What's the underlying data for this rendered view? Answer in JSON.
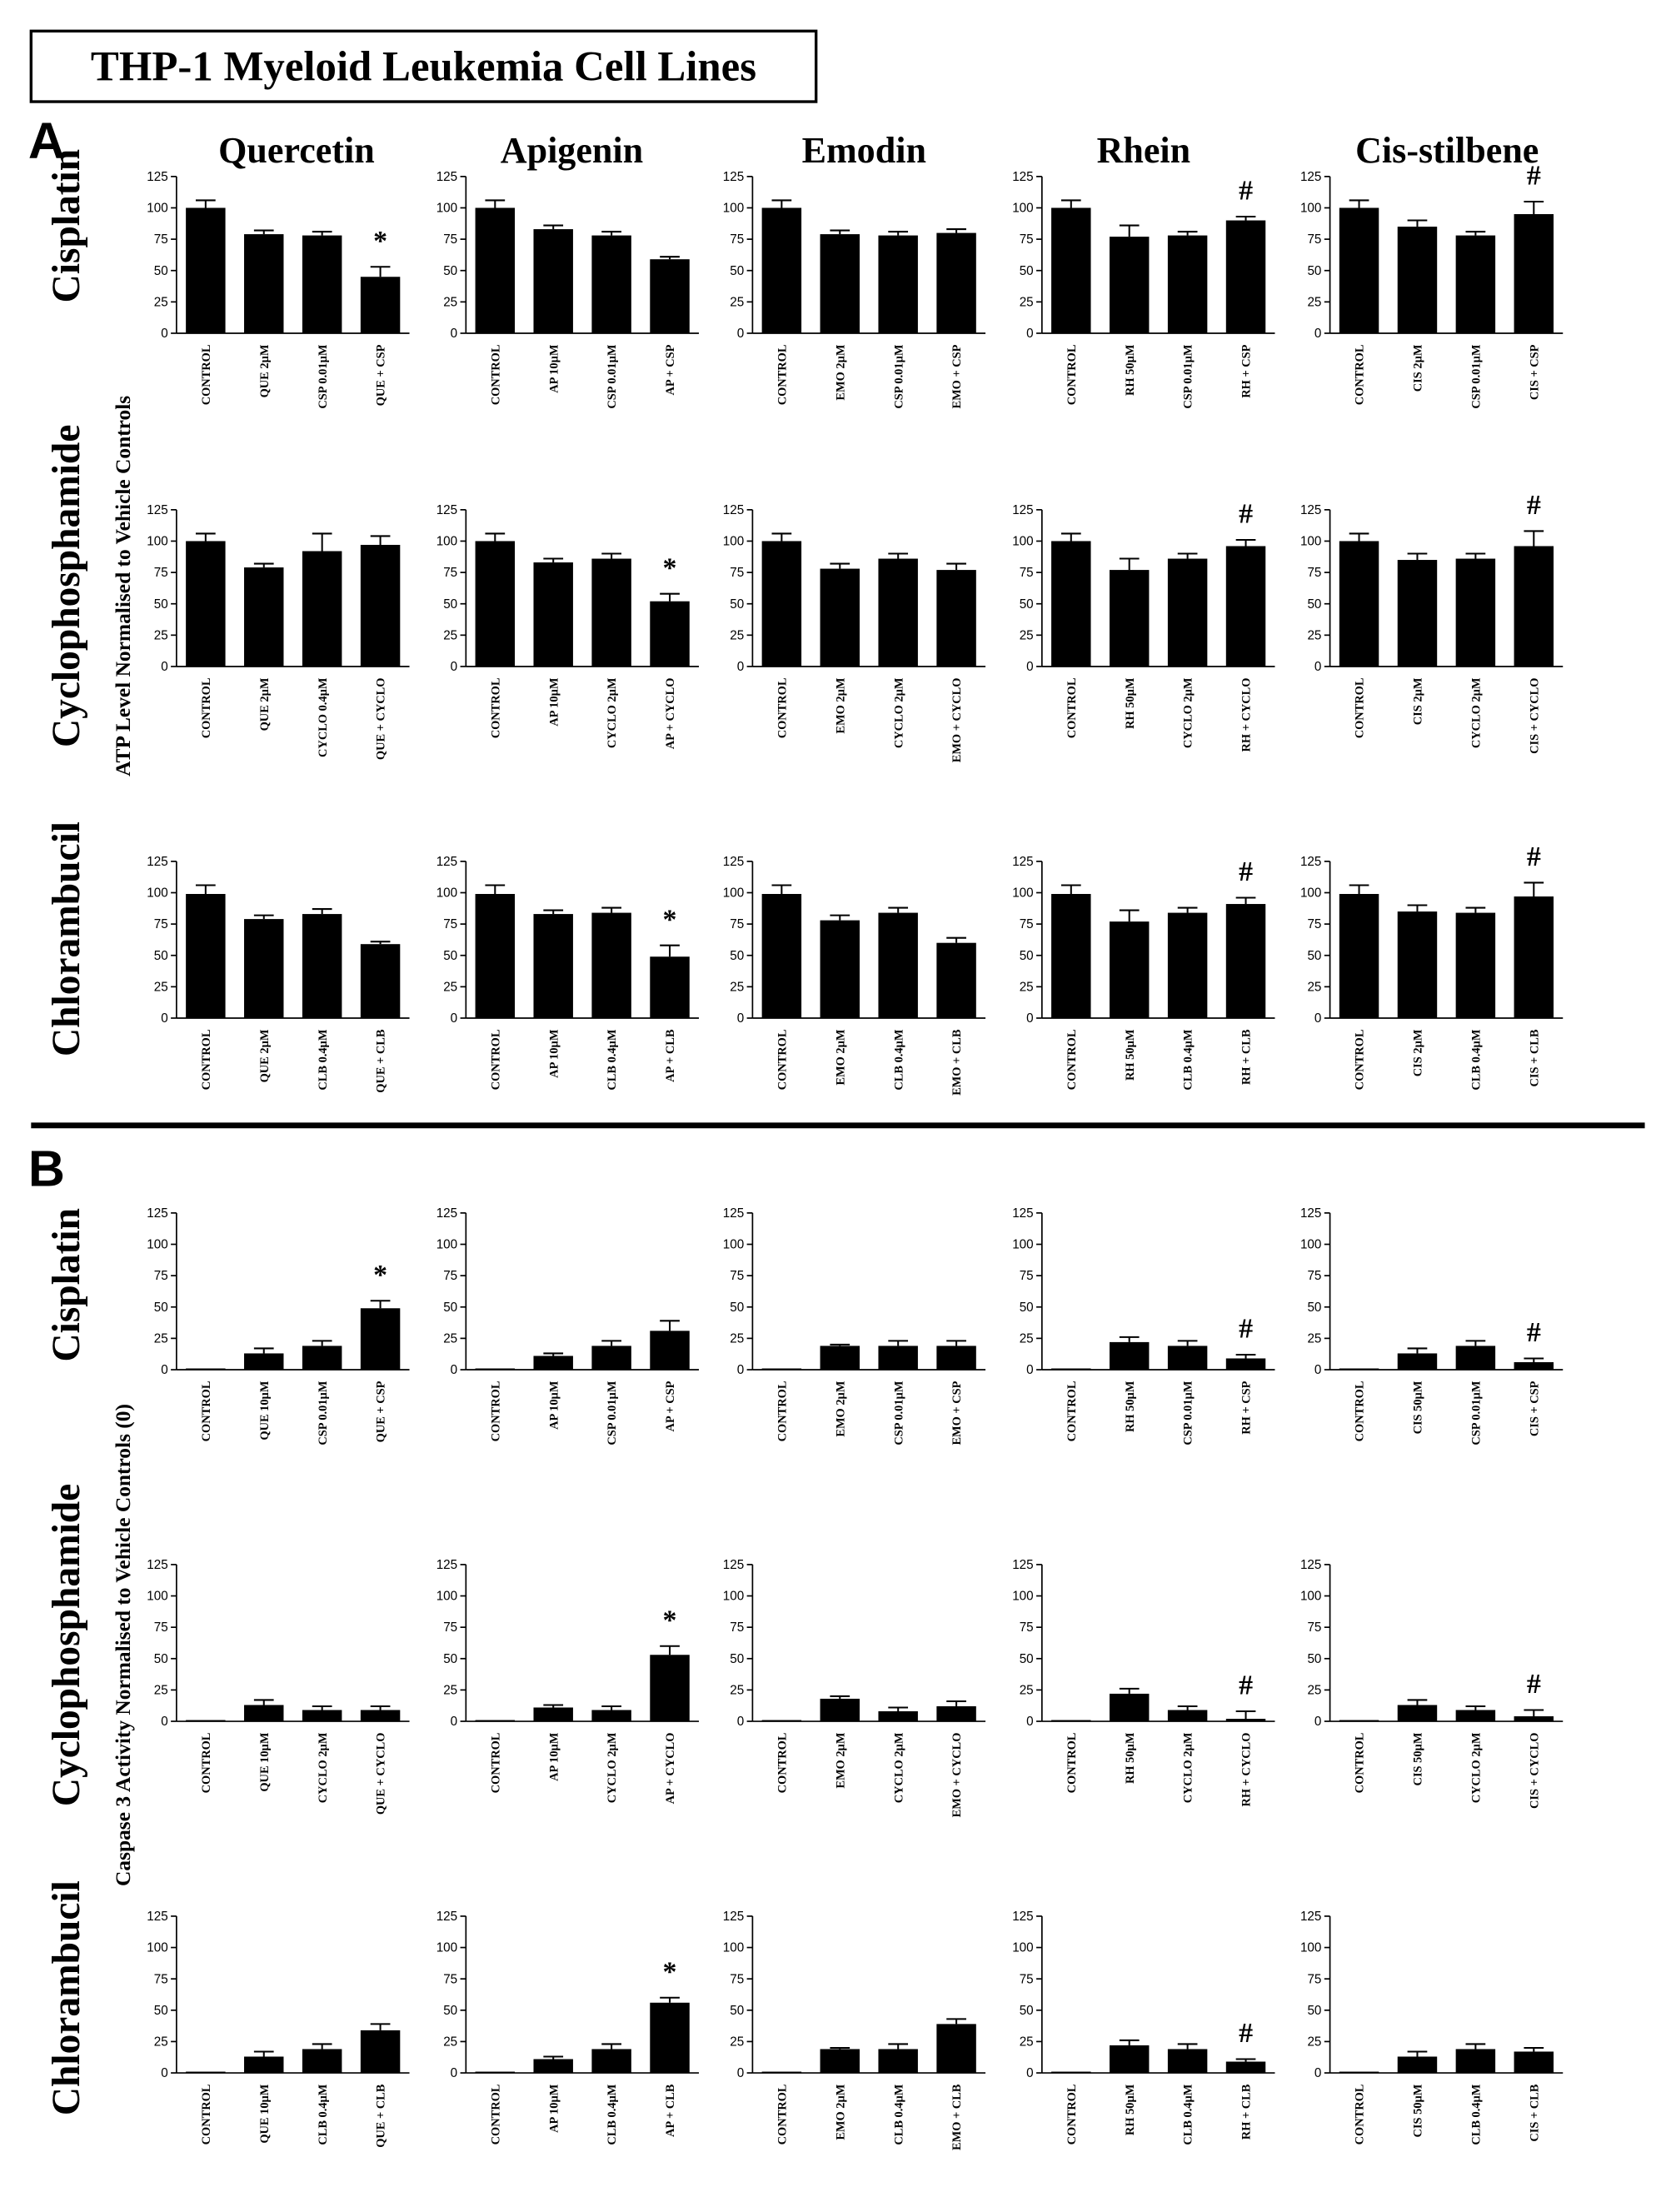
{
  "title": "THP-1 Myeloid Leukemia Cell Lines",
  "columns": [
    "Quercetin",
    "Apigenin",
    "Emodin",
    "Rhein",
    "Cis-stilbene"
  ],
  "panels": [
    {
      "label": "A",
      "ylabel": "ATP Level Normalised to Vehicle Controls",
      "rows": [
        "Cisplatin",
        "Cyclophosphamide",
        "Chlorambucil"
      ]
    },
    {
      "label": "B",
      "ylabel": "Caspase 3 Activity Normalised to Vehicle Controls (0)",
      "rows": [
        "Cisplatin",
        "Cyclophosphamide",
        "Chlorambucil"
      ]
    }
  ],
  "chart_data": [
    {
      "type": "bar",
      "color": "#000000",
      "categories": [
        "CONTROL",
        "QUE 2µM",
        "CSP 0.01µM",
        "QUE + CSP"
      ],
      "values": [
        100,
        79,
        78,
        45
      ],
      "errors": [
        6,
        3,
        3,
        8
      ],
      "annotation": "*",
      "ylim": [
        0,
        125
      ],
      "yticks": [
        0,
        25,
        50,
        75,
        100,
        125
      ]
    },
    {
      "type": "bar",
      "color": "#000000",
      "categories": [
        "CONTROL",
        "AP 10µM",
        "CSP 0.01µM",
        "AP + CSP"
      ],
      "values": [
        100,
        83,
        78,
        59
      ],
      "errors": [
        6,
        3,
        3,
        2
      ],
      "ylim": [
        0,
        125
      ],
      "yticks": [
        0,
        25,
        50,
        75,
        100,
        125
      ]
    },
    {
      "type": "bar",
      "color": "#000000",
      "categories": [
        "CONTROL",
        "EMO 2µM",
        "CSP 0.01µM",
        "EMO + CSP"
      ],
      "values": [
        100,
        79,
        78,
        80
      ],
      "errors": [
        6,
        3,
        3,
        3
      ],
      "ylim": [
        0,
        125
      ],
      "yticks": [
        0,
        25,
        50,
        75,
        100,
        125
      ]
    },
    {
      "type": "bar",
      "color": "#000000",
      "categories": [
        "CONTROL",
        "RH 50µM",
        "CSP 0.01µM",
        "RH + CSP"
      ],
      "values": [
        100,
        77,
        78,
        90
      ],
      "errors": [
        6,
        9,
        3,
        3
      ],
      "annotation": "#",
      "ylim": [
        0,
        125
      ],
      "yticks": [
        0,
        25,
        50,
        75,
        100,
        125
      ]
    },
    {
      "type": "bar",
      "color": "#000000",
      "categories": [
        "CONTROL",
        "CIS 2µM",
        "CSP 0.01µM",
        "CIS + CSP"
      ],
      "values": [
        100,
        85,
        78,
        95
      ],
      "errors": [
        6,
        5,
        3,
        10
      ],
      "annotation": "#",
      "ylim": [
        0,
        125
      ],
      "yticks": [
        0,
        25,
        50,
        75,
        100,
        125
      ]
    },
    {
      "type": "bar",
      "color": "#000000",
      "categories": [
        "CONTROL",
        "QUE 2µM",
        "CYCLO 0.4µM",
        "QUE + CYCLO"
      ],
      "values": [
        100,
        79,
        92,
        97
      ],
      "errors": [
        6,
        3,
        14,
        7
      ],
      "ylim": [
        0,
        125
      ],
      "yticks": [
        0,
        25,
        50,
        75,
        100,
        125
      ]
    },
    {
      "type": "bar",
      "color": "#000000",
      "categories": [
        "CONTROL",
        "AP 10µM",
        "CYCLO 2µM",
        "AP + CYCLO"
      ],
      "values": [
        100,
        83,
        86,
        52
      ],
      "errors": [
        6,
        3,
        4,
        6
      ],
      "annotation": "*",
      "ylim": [
        0,
        125
      ],
      "yticks": [
        0,
        25,
        50,
        75,
        100,
        125
      ]
    },
    {
      "type": "bar",
      "color": "#000000",
      "categories": [
        "CONTROL",
        "EMO 2µM",
        "CYCLO 2µM",
        "EMO + CYCLO"
      ],
      "values": [
        100,
        78,
        86,
        77
      ],
      "errors": [
        6,
        4,
        4,
        5
      ],
      "ylim": [
        0,
        125
      ],
      "yticks": [
        0,
        25,
        50,
        75,
        100,
        125
      ]
    },
    {
      "type": "bar",
      "color": "#000000",
      "categories": [
        "CONTROL",
        "RH 50µM",
        "CYCLO 2µM",
        "RH + CYCLO"
      ],
      "values": [
        100,
        77,
        86,
        96
      ],
      "errors": [
        6,
        9,
        4,
        5
      ],
      "annotation": "#",
      "ylim": [
        0,
        125
      ],
      "yticks": [
        0,
        25,
        50,
        75,
        100,
        125
      ]
    },
    {
      "type": "bar",
      "color": "#000000",
      "categories": [
        "CONTROL",
        "CIS 2µM",
        "CYCLO 2µM",
        "CIS + CYCLO"
      ],
      "values": [
        100,
        85,
        86,
        96
      ],
      "errors": [
        6,
        5,
        4,
        12
      ],
      "annotation": "#",
      "ylim": [
        0,
        125
      ],
      "yticks": [
        0,
        25,
        50,
        75,
        100,
        125
      ]
    },
    {
      "type": "bar",
      "color": "#000000",
      "categories": [
        "CONTROL",
        "QUE 2µM",
        "CLB 0.4µM",
        "QUE + CLB"
      ],
      "values": [
        99,
        79,
        83,
        59
      ],
      "errors": [
        7,
        3,
        4,
        2
      ],
      "ylim": [
        0,
        125
      ],
      "yticks": [
        0,
        25,
        50,
        75,
        100,
        125
      ]
    },
    {
      "type": "bar",
      "color": "#000000",
      "categories": [
        "CONTROL",
        "AP 10µM",
        "CLB 0.4µM",
        "AP + CLB"
      ],
      "values": [
        99,
        83,
        84,
        49
      ],
      "errors": [
        7,
        3,
        4,
        9
      ],
      "annotation": "*",
      "ylim": [
        0,
        125
      ],
      "yticks": [
        0,
        25,
        50,
        75,
        100,
        125
      ]
    },
    {
      "type": "bar",
      "color": "#000000",
      "categories": [
        "CONTROL",
        "EMO 2µM",
        "CLB 0.4µM",
        "EMO + CLB"
      ],
      "values": [
        99,
        78,
        84,
        60
      ],
      "errors": [
        7,
        4,
        4,
        4
      ],
      "ylim": [
        0,
        125
      ],
      "yticks": [
        0,
        25,
        50,
        75,
        100,
        125
      ]
    },
    {
      "type": "bar",
      "color": "#000000",
      "categories": [
        "CONTROL",
        "RH 50µM",
        "CLB 0.4µM",
        "RH + CLB"
      ],
      "values": [
        99,
        77,
        84,
        91
      ],
      "errors": [
        7,
        9,
        4,
        5
      ],
      "annotation": "#",
      "ylim": [
        0,
        125
      ],
      "yticks": [
        0,
        25,
        50,
        75,
        100,
        125
      ]
    },
    {
      "type": "bar",
      "color": "#000000",
      "categories": [
        "CONTROL",
        "CIS 2µM",
        "CLB 0.4µM",
        "CIS + CLB"
      ],
      "values": [
        99,
        85,
        84,
        97
      ],
      "errors": [
        7,
        5,
        4,
        11
      ],
      "annotation": "#",
      "ylim": [
        0,
        125
      ],
      "yticks": [
        0,
        25,
        50,
        75,
        100,
        125
      ]
    },
    {
      "type": "bar",
      "color": "#000000",
      "categories": [
        "CONTROL",
        "QUE 10µM",
        "CSP 0.01µM",
        "QUE + CSP"
      ],
      "values": [
        1,
        13,
        19,
        49
      ],
      "errors": [
        0,
        4,
        4,
        6
      ],
      "annotation": "*",
      "ylim": [
        0,
        125
      ],
      "yticks": [
        0,
        25,
        50,
        75,
        100,
        125
      ]
    },
    {
      "type": "bar",
      "color": "#000000",
      "categories": [
        "CONTROL",
        "AP 10µM",
        "CSP 0.01µM",
        "AP + CSP"
      ],
      "values": [
        1,
        11,
        19,
        31
      ],
      "errors": [
        0,
        2,
        4,
        8
      ],
      "ylim": [
        0,
        125
      ],
      "yticks": [
        0,
        25,
        50,
        75,
        100,
        125
      ]
    },
    {
      "type": "bar",
      "color": "#000000",
      "categories": [
        "CONTROL",
        "EMO 2µM",
        "CSP 0.01µM",
        "EMO + CSP"
      ],
      "values": [
        1,
        19,
        19,
        19
      ],
      "errors": [
        0,
        1,
        4,
        4
      ],
      "ylim": [
        0,
        125
      ],
      "yticks": [
        0,
        25,
        50,
        75,
        100,
        125
      ]
    },
    {
      "type": "bar",
      "color": "#000000",
      "categories": [
        "CONTROL",
        "RH 50µM",
        "CSP 0.01µM",
        "RH + CSP"
      ],
      "values": [
        1,
        22,
        19,
        9
      ],
      "errors": [
        0,
        4,
        4,
        3
      ],
      "annotation": "#",
      "ylim": [
        0,
        125
      ],
      "yticks": [
        0,
        25,
        50,
        75,
        100,
        125
      ]
    },
    {
      "type": "bar",
      "color": "#000000",
      "categories": [
        "CONTROL",
        "CIS 50µM",
        "CSP 0.01µM",
        "CIS + CSP"
      ],
      "values": [
        1,
        13,
        19,
        6
      ],
      "errors": [
        0,
        4,
        4,
        3
      ],
      "annotation": "#",
      "ylim": [
        0,
        125
      ],
      "yticks": [
        0,
        25,
        50,
        75,
        100,
        125
      ]
    },
    {
      "type": "bar",
      "color": "#000000",
      "categories": [
        "CONTROL",
        "QUE 10µM",
        "CYCLO 2µM",
        "QUE + CYCLO"
      ],
      "values": [
        1,
        13,
        9,
        9
      ],
      "errors": [
        0,
        4,
        3,
        3
      ],
      "ylim": [
        0,
        125
      ],
      "yticks": [
        0,
        25,
        50,
        75,
        100,
        125
      ]
    },
    {
      "type": "bar",
      "color": "#000000",
      "categories": [
        "CONTROL",
        "AP 10µM",
        "CYCLO 2µM",
        "AP + CYCLO"
      ],
      "values": [
        1,
        11,
        9,
        53
      ],
      "errors": [
        0,
        2,
        3,
        7
      ],
      "annotation": "*",
      "ylim": [
        0,
        125
      ],
      "yticks": [
        0,
        25,
        50,
        75,
        100,
        125
      ]
    },
    {
      "type": "bar",
      "color": "#000000",
      "categories": [
        "CONTROL",
        "EMO 2µM",
        "CYCLO 2µM",
        "EMO + CYCLO"
      ],
      "values": [
        1,
        18,
        8,
        12
      ],
      "errors": [
        0,
        2,
        3,
        4
      ],
      "ylim": [
        0,
        125
      ],
      "yticks": [
        0,
        25,
        50,
        75,
        100,
        125
      ]
    },
    {
      "type": "bar",
      "color": "#000000",
      "categories": [
        "CONTROL",
        "RH 50µM",
        "CYCLO 2µM",
        "RH + CYCLO"
      ],
      "values": [
        1,
        22,
        9,
        2
      ],
      "errors": [
        0,
        4,
        3,
        6
      ],
      "annotation": "#",
      "ylim": [
        0,
        125
      ],
      "yticks": [
        0,
        25,
        50,
        75,
        100,
        125
      ]
    },
    {
      "type": "bar",
      "color": "#000000",
      "categories": [
        "CONTROL",
        "CIS 50µM",
        "CYCLO 2µM",
        "CIS + CYCLO"
      ],
      "values": [
        1,
        13,
        9,
        4
      ],
      "errors": [
        0,
        4,
        3,
        5
      ],
      "annotation": "#",
      "ylim": [
        0,
        125
      ],
      "yticks": [
        0,
        25,
        50,
        75,
        100,
        125
      ]
    },
    {
      "type": "bar",
      "color": "#000000",
      "categories": [
        "CONTROL",
        "QUE 10µM",
        "CLB 0.4µM",
        "QUE + CLB"
      ],
      "values": [
        1,
        13,
        19,
        34
      ],
      "errors": [
        0,
        4,
        4,
        5
      ],
      "ylim": [
        0,
        125
      ],
      "yticks": [
        0,
        25,
        50,
        75,
        100,
        125
      ]
    },
    {
      "type": "bar",
      "color": "#000000",
      "categories": [
        "CONTROL",
        "AP 10µM",
        "CLB 0.4µM",
        "AP + CLB"
      ],
      "values": [
        1,
        11,
        19,
        56
      ],
      "errors": [
        0,
        2,
        4,
        4
      ],
      "annotation": "*",
      "ylim": [
        0,
        125
      ],
      "yticks": [
        0,
        25,
        50,
        75,
        100,
        125
      ]
    },
    {
      "type": "bar",
      "color": "#000000",
      "categories": [
        "CONTROL",
        "EMO 2µM",
        "CLB 0.4µM",
        "EMO + CLB"
      ],
      "values": [
        1,
        19,
        19,
        39
      ],
      "errors": [
        0,
        1,
        4,
        4
      ],
      "ylim": [
        0,
        125
      ],
      "yticks": [
        0,
        25,
        50,
        75,
        100,
        125
      ]
    },
    {
      "type": "bar",
      "color": "#000000",
      "categories": [
        "CONTROL",
        "RH 50µM",
        "CLB 0.4µM",
        "RH + CLB"
      ],
      "values": [
        1,
        22,
        19,
        9
      ],
      "errors": [
        0,
        4,
        4,
        2
      ],
      "annotation": "#",
      "ylim": [
        0,
        125
      ],
      "yticks": [
        0,
        25,
        50,
        75,
        100,
        125
      ]
    },
    {
      "type": "bar",
      "color": "#000000",
      "categories": [
        "CONTROL",
        "CIS 50µM",
        "CLB 0.4µM",
        "CIS + CLB"
      ],
      "values": [
        1,
        13,
        19,
        17
      ],
      "errors": [
        0,
        4,
        4,
        3
      ],
      "ylim": [
        0,
        125
      ],
      "yticks": [
        0,
        25,
        50,
        75,
        100,
        125
      ]
    }
  ]
}
